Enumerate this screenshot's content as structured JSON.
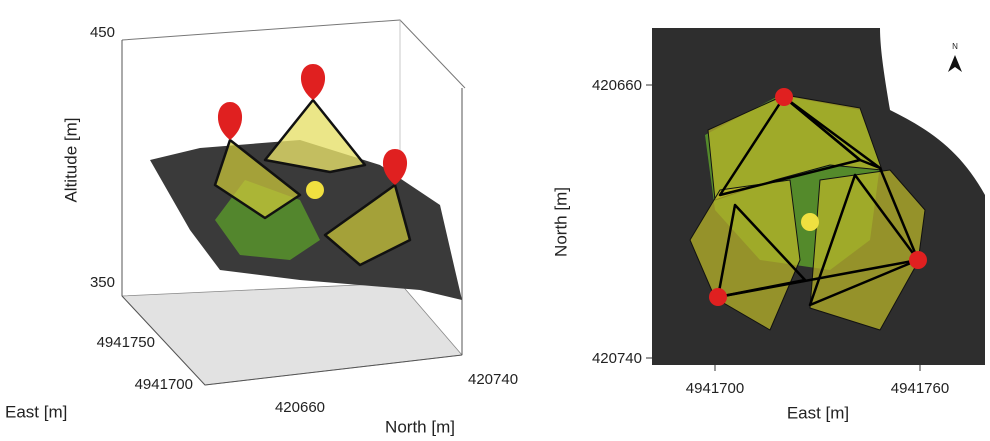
{
  "left_panel": {
    "altitude_label": "Altitude [m]",
    "altitude_ticks": [
      "450",
      "350"
    ],
    "east_label": "East [m]",
    "east_ticks": [
      "4941750",
      "4941700"
    ],
    "north_label": "North [m]",
    "north_ticks": [
      "420660",
      "420740"
    ]
  },
  "right_panel": {
    "north_label": "North [m]",
    "north_ticks": [
      "420660",
      "420740"
    ],
    "east_label": "East [m]",
    "east_ticks": [
      "4941700",
      "4941760"
    ],
    "compass": "N"
  }
}
